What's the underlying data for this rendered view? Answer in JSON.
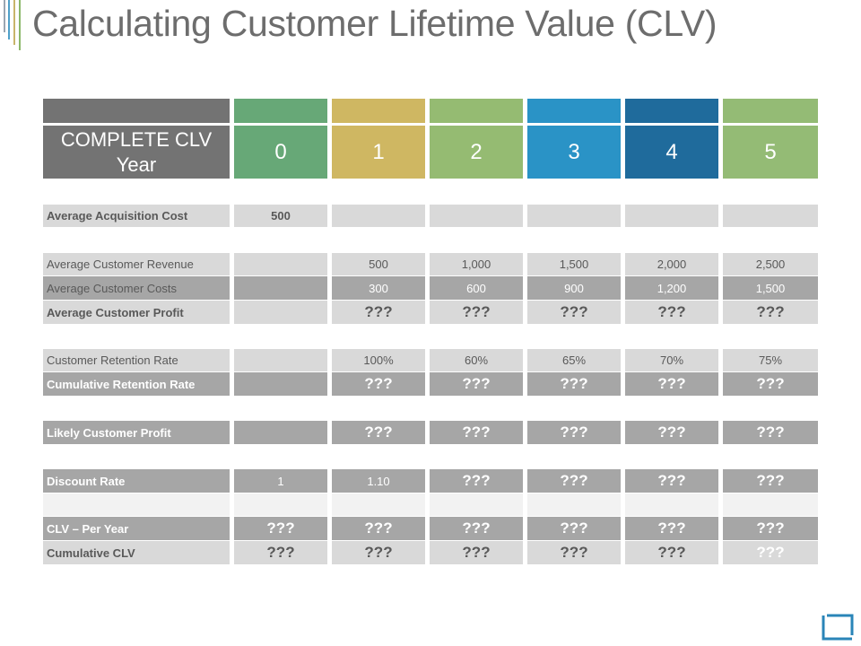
{
  "title": "Calculating Customer Lifetime Value (CLV)",
  "header": {
    "label_line1": "COMPLETE CLV",
    "label_line2": "Year",
    "years": [
      "0",
      "1",
      "2",
      "3",
      "4",
      "5"
    ]
  },
  "colors": {
    "year_bars": [
      "#67a877",
      "#cfb762",
      "#95bb72",
      "#2a93c6",
      "#1f6b9c",
      "#94bb75"
    ],
    "label_header": "#737373",
    "light_row": "#d9d9d9",
    "dark_row": "#a6a6a6",
    "blank_row": "#f2f2f2"
  },
  "rows": [
    {
      "key": "acq",
      "label": "Average Acquisition Cost",
      "values": [
        "500",
        "",
        "",
        "",
        "",
        ""
      ]
    },
    {
      "key": "rev",
      "label": "Average Customer Revenue",
      "values": [
        "",
        "500",
        "1,000",
        "1,500",
        "2,000",
        "2,500"
      ]
    },
    {
      "key": "cost",
      "label": "Average Customer Costs",
      "values": [
        "",
        "300",
        "600",
        "900",
        "1,200",
        "1,500"
      ]
    },
    {
      "key": "profit",
      "label": "Average Customer Profit",
      "values": [
        "",
        "???",
        "???",
        "???",
        "???",
        "???"
      ]
    },
    {
      "key": "ret",
      "label": "Customer Retention Rate",
      "values": [
        "",
        "100%",
        "60%",
        "65%",
        "70%",
        "75%"
      ]
    },
    {
      "key": "cumret",
      "label": "Cumulative Retention Rate",
      "values": [
        "",
        "???",
        "???",
        "???",
        "???",
        "???"
      ]
    },
    {
      "key": "likely",
      "label": "Likely Customer Profit",
      "values": [
        "",
        "???",
        "???",
        "???",
        "???",
        "???"
      ]
    },
    {
      "key": "disc",
      "label": "Discount Rate",
      "values": [
        "1",
        "1.10",
        "???",
        "???",
        "???",
        "???"
      ]
    },
    {
      "key": "blank",
      "label": "",
      "values": [
        "",
        "",
        "",
        "",
        "",
        ""
      ]
    },
    {
      "key": "clvyear",
      "label": "CLV – Per Year",
      "values": [
        "???",
        "???",
        "???",
        "???",
        "???",
        "???"
      ]
    },
    {
      "key": "cumclv",
      "label": "Cumulative CLV",
      "values": [
        "???",
        "???",
        "???",
        "???",
        "???",
        "???"
      ]
    }
  ]
}
